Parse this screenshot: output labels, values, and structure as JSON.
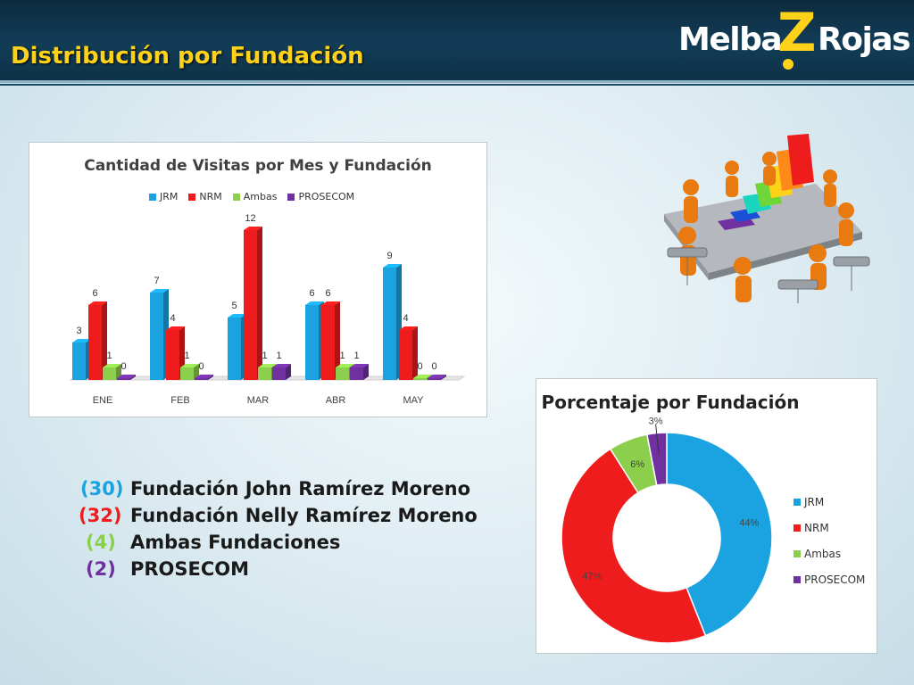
{
  "header": {
    "title": "Distribución por Fundación"
  },
  "logo": {
    "part1": "Melba",
    "initial": "Z",
    "part2": "Rojas"
  },
  "colors": {
    "JRM": "#1aa3e0",
    "NRM": "#ee1c1c",
    "Ambas": "#8ccf4c",
    "PROSECOM": "#7030a0",
    "title": "#ffd21a"
  },
  "chart_data": [
    {
      "type": "bar",
      "title": "Cantidad de Visitas por Mes y Fundación",
      "categories": [
        "ENE",
        "FEB",
        "MAR",
        "ABR",
        "MAY"
      ],
      "series": [
        {
          "name": "JRM",
          "values": [
            3,
            7,
            5,
            6,
            9
          ]
        },
        {
          "name": "NRM",
          "values": [
            6,
            4,
            12,
            6,
            4
          ]
        },
        {
          "name": "Ambas",
          "values": [
            1,
            1,
            1,
            1,
            0
          ]
        },
        {
          "name": "PROSECOM",
          "values": [
            0,
            0,
            1,
            1,
            0
          ]
        }
      ],
      "ylim": [
        0,
        12
      ],
      "legend": "top",
      "grid": false
    },
    {
      "type": "pie",
      "title": "Porcentaje por Fundación",
      "labels": [
        "JRM",
        "NRM",
        "Ambas",
        "PROSECOM"
      ],
      "values": [
        44,
        47,
        6,
        3
      ],
      "value_labels": [
        "44%",
        "47%",
        "6%",
        "3%"
      ],
      "legend": "right",
      "donut": true
    }
  ],
  "summary": [
    {
      "count": "(30)",
      "label": "Fundación John Ramírez Moreno",
      "color": "#1aa3e0"
    },
    {
      "count": "(32)",
      "label": "Fundación Nelly Ramírez Moreno",
      "color": "#ee1c1c"
    },
    {
      "count": "(4)",
      "label": "Ambas Fundaciones",
      "color": "#8ccf4c"
    },
    {
      "count": "(2)",
      "label": "PROSECOM",
      "color": "#7030a0"
    }
  ],
  "illustration": {
    "icon": "business-meeting-3d-chart-icon"
  }
}
